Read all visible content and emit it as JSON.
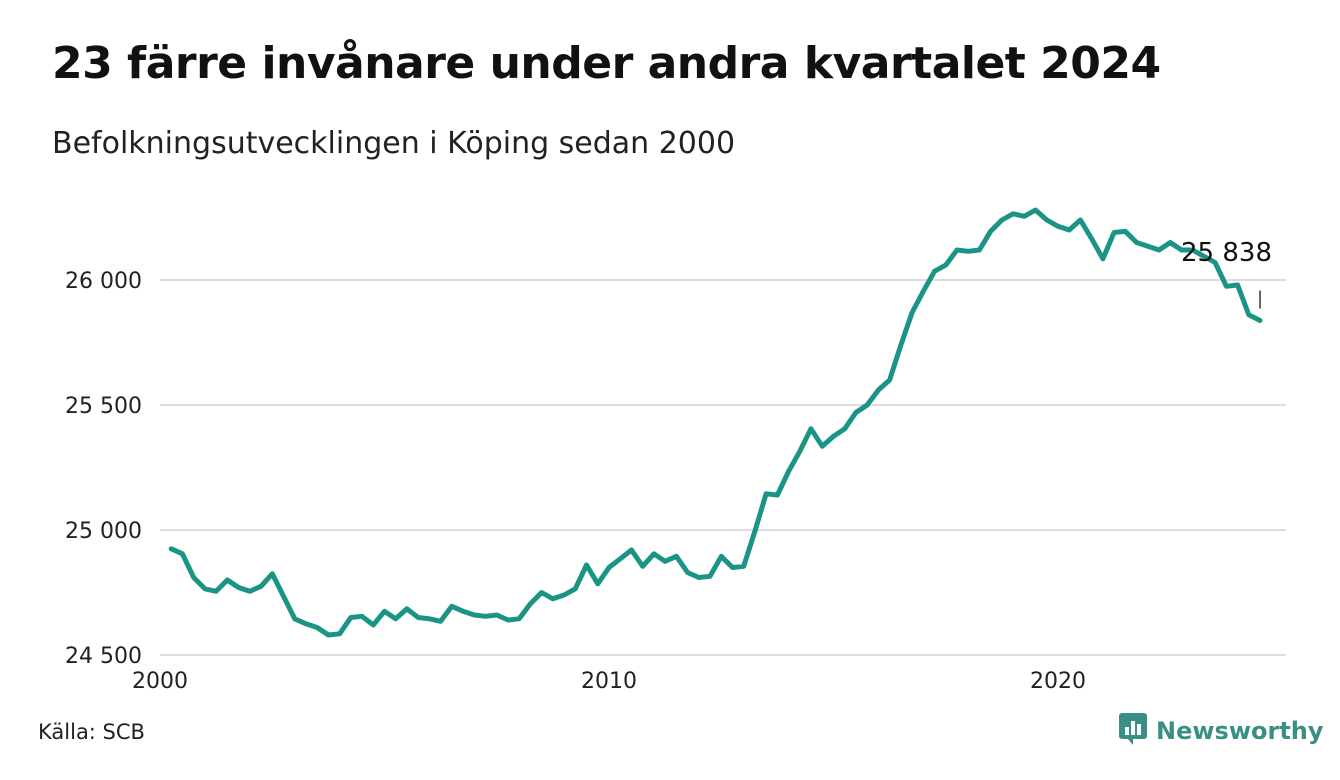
{
  "title": "23 färre invånare under andra kvartalet 2024",
  "subtitle": "Befolkningsutvecklingen i Köping sedan 2000",
  "source": "Källa: SCB",
  "brand": {
    "name": "Newsworthy",
    "icon": "newsworthy-logo-icon",
    "color": "#3a8f84"
  },
  "colors": {
    "line": "#1a9485",
    "grid": "#dcdce2",
    "text": "#111111"
  },
  "chart_data": {
    "type": "line",
    "title": "23 färre invånare under andra kvartalet 2024",
    "subtitle": "Befolkningsutvecklingen i Köping sedan 2000",
    "xlabel": "",
    "ylabel": "",
    "xlim": [
      2000,
      2025.75
    ],
    "ylim": [
      24500,
      26300
    ],
    "x_ticks": [
      {
        "value": 2000,
        "label": "2000"
      },
      {
        "value": 2010,
        "label": "2010"
      },
      {
        "value": 2020,
        "label": "2020"
      }
    ],
    "y_ticks": [
      {
        "value": 24500,
        "label": "24 500"
      },
      {
        "value": 25000,
        "label": "25 000"
      },
      {
        "value": 25500,
        "label": "25 500"
      },
      {
        "value": 26000,
        "label": "26 000"
      }
    ],
    "grid": "horizontal",
    "series": [
      {
        "values": [
          {
            "x": 2000.25,
            "y": 24925
          },
          {
            "x": 2000.5,
            "y": 24905
          },
          {
            "x": 2000.75,
            "y": 24810
          },
          {
            "x": 2001.0,
            "y": 24765
          },
          {
            "x": 2001.25,
            "y": 24755
          },
          {
            "x": 2001.5,
            "y": 24800
          },
          {
            "x": 2001.75,
            "y": 24770
          },
          {
            "x": 2002.0,
            "y": 24755
          },
          {
            "x": 2002.25,
            "y": 24775
          },
          {
            "x": 2002.5,
            "y": 24825
          },
          {
            "x": 2002.75,
            "y": 24735
          },
          {
            "x": 2003.0,
            "y": 24645
          },
          {
            "x": 2003.25,
            "y": 24625
          },
          {
            "x": 2003.5,
            "y": 24610
          },
          {
            "x": 2003.75,
            "y": 24580
          },
          {
            "x": 2004.0,
            "y": 24585
          },
          {
            "x": 2004.25,
            "y": 24650
          },
          {
            "x": 2004.5,
            "y": 24655
          },
          {
            "x": 2004.75,
            "y": 24620
          },
          {
            "x": 2005.0,
            "y": 24675
          },
          {
            "x": 2005.25,
            "y": 24645
          },
          {
            "x": 2005.5,
            "y": 24685
          },
          {
            "x": 2005.75,
            "y": 24650
          },
          {
            "x": 2006.0,
            "y": 24645
          },
          {
            "x": 2006.25,
            "y": 24635
          },
          {
            "x": 2006.5,
            "y": 24695
          },
          {
            "x": 2006.75,
            "y": 24675
          },
          {
            "x": 2007.0,
            "y": 24660
          },
          {
            "x": 2007.25,
            "y": 24655
          },
          {
            "x": 2007.5,
            "y": 24660
          },
          {
            "x": 2007.75,
            "y": 24640
          },
          {
            "x": 2008.0,
            "y": 24645
          },
          {
            "x": 2008.25,
            "y": 24705
          },
          {
            "x": 2008.5,
            "y": 24750
          },
          {
            "x": 2008.75,
            "y": 24725
          },
          {
            "x": 2009.0,
            "y": 24740
          },
          {
            "x": 2009.25,
            "y": 24765
          },
          {
            "x": 2009.5,
            "y": 24860
          },
          {
            "x": 2009.75,
            "y": 24785
          },
          {
            "x": 2010.0,
            "y": 24850
          },
          {
            "x": 2010.25,
            "y": 24885
          },
          {
            "x": 2010.5,
            "y": 24920
          },
          {
            "x": 2010.75,
            "y": 24855
          },
          {
            "x": 2011.0,
            "y": 24905
          },
          {
            "x": 2011.25,
            "y": 24875
          },
          {
            "x": 2011.5,
            "y": 24895
          },
          {
            "x": 2011.75,
            "y": 24830
          },
          {
            "x": 2012.0,
            "y": 24810
          },
          {
            "x": 2012.25,
            "y": 24815
          },
          {
            "x": 2012.5,
            "y": 24895
          },
          {
            "x": 2012.75,
            "y": 24850
          },
          {
            "x": 2013.0,
            "y": 24855
          },
          {
            "x": 2013.25,
            "y": 24995
          },
          {
            "x": 2013.5,
            "y": 25145
          },
          {
            "x": 2013.75,
            "y": 25140
          },
          {
            "x": 2014.0,
            "y": 25235
          },
          {
            "x": 2014.25,
            "y": 25315
          },
          {
            "x": 2014.5,
            "y": 25405
          },
          {
            "x": 2014.75,
            "y": 25335
          },
          {
            "x": 2015.0,
            "y": 25375
          },
          {
            "x": 2015.25,
            "y": 25405
          },
          {
            "x": 2015.5,
            "y": 25470
          },
          {
            "x": 2015.75,
            "y": 25500
          },
          {
            "x": 2016.0,
            "y": 25560
          },
          {
            "x": 2016.25,
            "y": 25600
          },
          {
            "x": 2016.5,
            "y": 25740
          },
          {
            "x": 2016.75,
            "y": 25870
          },
          {
            "x": 2017.0,
            "y": 25955
          },
          {
            "x": 2017.25,
            "y": 26035
          },
          {
            "x": 2017.5,
            "y": 26060
          },
          {
            "x": 2017.75,
            "y": 26120
          },
          {
            "x": 2018.0,
            "y": 26115
          },
          {
            "x": 2018.25,
            "y": 26120
          },
          {
            "x": 2018.5,
            "y": 26195
          },
          {
            "x": 2018.75,
            "y": 26240
          },
          {
            "x": 2019.0,
            "y": 26265
          },
          {
            "x": 2019.25,
            "y": 26255
          },
          {
            "x": 2019.5,
            "y": 26280
          },
          {
            "x": 2019.75,
            "y": 26240
          },
          {
            "x": 2020.0,
            "y": 26215
          },
          {
            "x": 2020.25,
            "y": 26200
          },
          {
            "x": 2020.5,
            "y": 26240
          },
          {
            "x": 2020.75,
            "y": 26165
          },
          {
            "x": 2021.0,
            "y": 26085
          },
          {
            "x": 2021.25,
            "y": 26190
          },
          {
            "x": 2021.5,
            "y": 26195
          },
          {
            "x": 2021.75,
            "y": 26150
          },
          {
            "x": 2022.0,
            "y": 26135
          },
          {
            "x": 2022.25,
            "y": 26120
          },
          {
            "x": 2022.5,
            "y": 26150
          },
          {
            "x": 2022.75,
            "y": 26120
          },
          {
            "x": 2023.0,
            "y": 26120
          },
          {
            "x": 2023.25,
            "y": 26095
          },
          {
            "x": 2023.5,
            "y": 26070
          },
          {
            "x": 2023.75,
            "y": 25975
          },
          {
            "x": 2024.0,
            "y": 25980
          },
          {
            "x": 2024.25,
            "y": 25861
          },
          {
            "x": 2024.5,
            "y": 25838
          }
        ]
      }
    ],
    "annotation": {
      "x": 2024.5,
      "y": 25838,
      "text": "25 838"
    }
  }
}
